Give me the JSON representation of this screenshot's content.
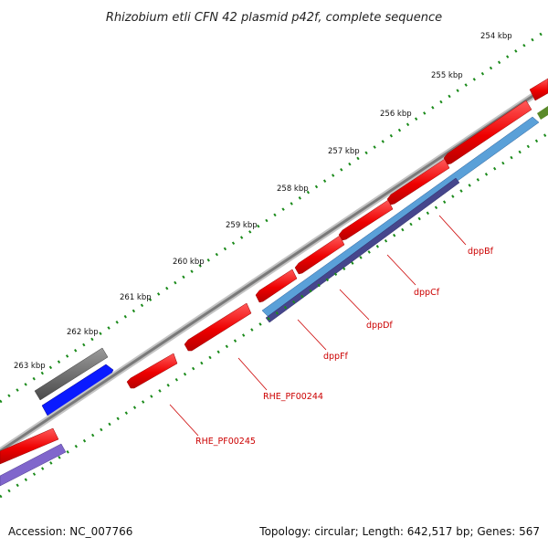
{
  "title": "Rhizobium etli CFN 42 plasmid p42f, complete sequence",
  "footer": {
    "accession": "Accession: NC_007766",
    "summary": "Topology: circular; Length: 642,517 bp; Genes: 567"
  },
  "kbp_labels": [
    "254 kbp",
    "255 kbp",
    "256 kbp",
    "257 kbp",
    "258 kbp",
    "259 kbp",
    "260 kbp",
    "261 kbp",
    "262 kbp",
    "263 kbp"
  ],
  "gene_labels": [
    "dppBf",
    "dppCf",
    "dppDf",
    "dppFf",
    "RHE_PF00244",
    "RHE_PF00245"
  ],
  "colors": {
    "backbone": "#8a8a8a",
    "cds_forward": "#ff1010",
    "cds_reverse": "#ff1010",
    "operon_light": "#5aa0d8",
    "operon_dark": "#46468c",
    "operon_purple": "#8066cc",
    "blue_gene": "#0a1aff",
    "gray_gene": "#707070",
    "tick": "#1a8a1a",
    "label_line": "#cc0000"
  }
}
